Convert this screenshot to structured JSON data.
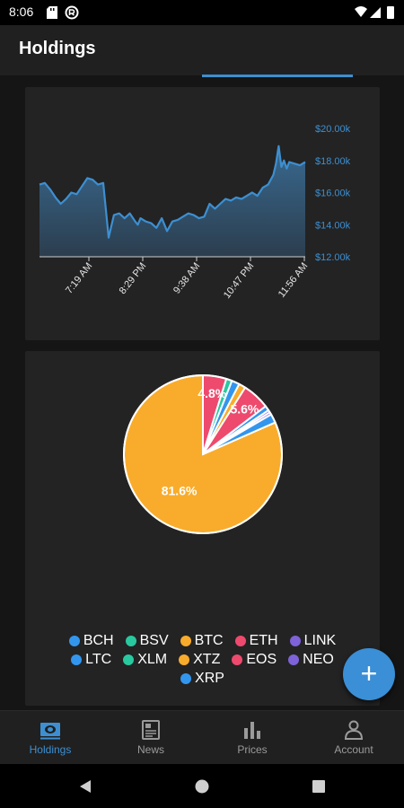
{
  "status_bar": {
    "time": "8:06"
  },
  "app_bar": {
    "title": "Holdings"
  },
  "line_chart": {
    "y_ticks": [
      "$20.00k",
      "$18.00k",
      "$16.00k",
      "$14.00k",
      "$12.00k"
    ],
    "x_ticks": [
      "7:19 AM",
      "8:29 PM",
      "9:38 AM",
      "10:47 PM",
      "11:56 AM"
    ]
  },
  "chart_data": [
    {
      "type": "area",
      "title": "",
      "xlabel": "",
      "ylabel": "",
      "ylim": [
        12000,
        20000
      ],
      "y_tick_labels": [
        "$12.00k",
        "$14.00k",
        "$16.00k",
        "$18.00k",
        "$20.00k"
      ],
      "x_tick_labels": [
        "7:19 AM",
        "8:29 PM",
        "9:38 AM",
        "10:47 PM",
        "11:56 AM"
      ],
      "y_axis_position": "right",
      "grid": false,
      "color": "#3d8fd1",
      "x": [
        0,
        2,
        4,
        6,
        8,
        10,
        12,
        14,
        16,
        18,
        20,
        22,
        24,
        26,
        28,
        30,
        32,
        34,
        36,
        37,
        38,
        40,
        42,
        44,
        46,
        48,
        50,
        52,
        54,
        56,
        58,
        60,
        62,
        64,
        66,
        68,
        70,
        72,
        74,
        76,
        78,
        80,
        82,
        84,
        86,
        88,
        89,
        90,
        91,
        92,
        93,
        94,
        96,
        98,
        100
      ],
      "values": [
        16500,
        16600,
        16200,
        15700,
        15300,
        15600,
        16000,
        15900,
        16400,
        16900,
        16800,
        16500,
        16600,
        13200,
        14600,
        14700,
        14400,
        14700,
        14200,
        14000,
        14400,
        14200,
        14100,
        13800,
        14400,
        13600,
        14200,
        14300,
        14500,
        14700,
        14600,
        14400,
        14500,
        15300,
        15000,
        15300,
        15600,
        15500,
        15700,
        15600,
        15800,
        16000,
        15800,
        16300,
        16500,
        17100,
        17800,
        18900,
        17600,
        18000,
        17500,
        17900,
        17800,
        17700,
        17900
      ]
    },
    {
      "type": "pie",
      "title": "",
      "slices": [
        {
          "name": "BTC",
          "value": 81.6,
          "color": "#f9ac2b",
          "label": "81.6%"
        },
        {
          "name": "EOS",
          "value": 4.8,
          "color": "#ee4a6e",
          "label": "4.8%"
        },
        {
          "name": "XLM",
          "value": 1.2,
          "color": "#29c9a0"
        },
        {
          "name": "LTC",
          "value": 1.6,
          "color": "#3396ee"
        },
        {
          "name": "XTZ",
          "value": 1.4,
          "color": "#f9ac2b"
        },
        {
          "name": "ETH",
          "value": 5.6,
          "color": "#ee4a6e",
          "label": "5.6%"
        },
        {
          "name": "BCH",
          "value": 1.0,
          "color": "#3396ee"
        },
        {
          "name": "LINK",
          "value": 0.5,
          "color": "#7e62d9"
        },
        {
          "name": "NEO",
          "value": 0.5,
          "color": "#7e62d9"
        },
        {
          "name": "XRP",
          "value": 1.8,
          "color": "#3396ee"
        }
      ]
    }
  ],
  "legend": {
    "rows": [
      [
        {
          "label": "BCH",
          "color": "#3396ee"
        },
        {
          "label": "BSV",
          "color": "#29c9a0"
        },
        {
          "label": "BTC",
          "color": "#f9ac2b"
        },
        {
          "label": "ETH",
          "color": "#ee4a6e"
        },
        {
          "label": "LINK",
          "color": "#7e62d9"
        }
      ],
      [
        {
          "label": "LTC",
          "color": "#3396ee"
        },
        {
          "label": "XLM",
          "color": "#29c9a0"
        },
        {
          "label": "XTZ",
          "color": "#f9ac2b"
        },
        {
          "label": "EOS",
          "color": "#ee4a6e"
        },
        {
          "label": "NEO",
          "color": "#7e62d9"
        }
      ],
      [
        {
          "label": "XRP",
          "color": "#3396ee"
        }
      ]
    ]
  },
  "fab": {
    "icon": "plus-icon",
    "glyph": "+"
  },
  "bottom_nav": {
    "items": [
      {
        "label": "Holdings",
        "icon": "holdings-icon",
        "active": true
      },
      {
        "label": "News",
        "icon": "news-icon",
        "active": false
      },
      {
        "label": "Prices",
        "icon": "prices-icon",
        "active": false
      },
      {
        "label": "Account",
        "icon": "account-icon",
        "active": false
      }
    ]
  },
  "colors": {
    "accent": "#3d8fd1",
    "card": "#232323",
    "background": "#151515"
  }
}
